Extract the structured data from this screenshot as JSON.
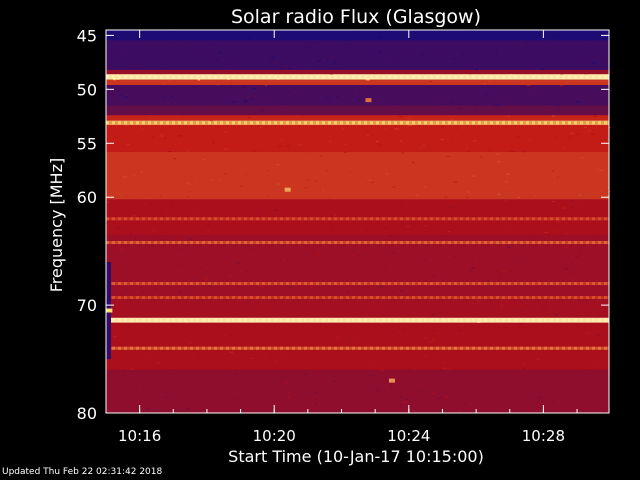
{
  "chart_data": {
    "type": "heatmap",
    "title": "Solar radio Flux (Glasgow)",
    "xlabel": "Start Time (10-Jan-17 10:15:00)",
    "ylabel": "Frequency [MHz]",
    "x_ticks": [
      "10:16",
      "10:20",
      "10:24",
      "10:28"
    ],
    "x_tick_minutes": [
      16,
      20,
      24,
      28
    ],
    "xlim_minutes": [
      15.0,
      29.95
    ],
    "y_ticks": [
      45,
      50,
      55,
      60,
      70,
      80
    ],
    "ylim": [
      44.5,
      80.0
    ],
    "colors": {
      "low": "#0a0a80",
      "mid": "#c01010",
      "high": "#ffe070",
      "background": "#000000",
      "text": "#ffffff"
    },
    "bands": [
      {
        "from": 44.5,
        "to": 45.5,
        "level": 0.05
      },
      {
        "from": 45.5,
        "to": 48.2,
        "level": 0.12
      },
      {
        "from": 48.2,
        "to": 48.6,
        "level": 0.35
      },
      {
        "from": 48.6,
        "to": 49.1,
        "level": 1.0
      },
      {
        "from": 49.1,
        "to": 49.6,
        "level": 0.55
      },
      {
        "from": 49.6,
        "to": 51.5,
        "level": 0.15
      },
      {
        "from": 51.5,
        "to": 52.4,
        "level": 0.22
      },
      {
        "from": 52.4,
        "to": 52.9,
        "level": 0.5
      },
      {
        "from": 52.9,
        "to": 53.3,
        "level": 0.9
      },
      {
        "from": 53.3,
        "to": 55.8,
        "level": 0.48
      },
      {
        "from": 55.8,
        "to": 60.2,
        "level": 0.55
      },
      {
        "from": 60.2,
        "to": 63.5,
        "level": 0.4
      },
      {
        "from": 63.5,
        "to": 69.5,
        "level": 0.36
      },
      {
        "from": 69.5,
        "to": 71.2,
        "level": 0.38
      },
      {
        "from": 71.2,
        "to": 71.6,
        "level": 1.0
      },
      {
        "from": 71.6,
        "to": 76.0,
        "level": 0.4
      },
      {
        "from": 76.0,
        "to": 80.0,
        "level": 0.33
      }
    ],
    "lines": [
      {
        "freq": 48.85,
        "level": 1.0
      },
      {
        "freq": 53.1,
        "level": 0.95
      },
      {
        "freq": 62.0,
        "level": 0.62
      },
      {
        "freq": 64.2,
        "level": 0.68
      },
      {
        "freq": 68.0,
        "level": 0.65
      },
      {
        "freq": 69.3,
        "level": 0.62
      },
      {
        "freq": 71.4,
        "level": 1.0
      },
      {
        "freq": 74.0,
        "level": 0.72
      }
    ],
    "hotspots": [
      {
        "minute": 20.4,
        "freq": 59.3,
        "level": 0.85
      },
      {
        "minute": 22.8,
        "freq": 51.0,
        "level": 0.7
      },
      {
        "minute": 23.5,
        "freq": 77.0,
        "level": 0.8
      },
      {
        "minute": 15.1,
        "freq": 70.5,
        "level": 1.0
      }
    ]
  },
  "footer": {
    "updated": "Updated Thu Feb 22 02:31:42 2018"
  }
}
